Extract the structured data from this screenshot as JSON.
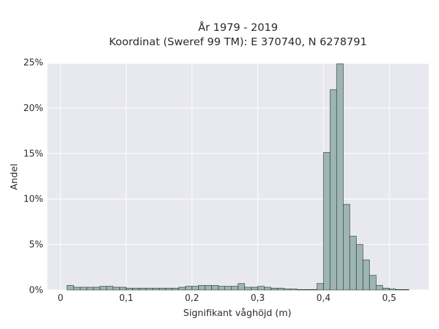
{
  "chart_data": {
    "type": "bar",
    "title_line1": "År 1979 - 2019",
    "title_line2": "Koordinat (Sweref 99 TM): E 370740, N 6278791",
    "xlabel": "Signifikant våghöjd (m)",
    "ylabel": "Andel",
    "xlim": [
      -0.02,
      0.56
    ],
    "ylim": [
      0,
      0.2485
    ],
    "x_ticks": [
      {
        "value": 0,
        "label": "0"
      },
      {
        "value": 0.1,
        "label": "0,1"
      },
      {
        "value": 0.2,
        "label": "0,2"
      },
      {
        "value": 0.3,
        "label": "0,3"
      },
      {
        "value": 0.4,
        "label": "0,4"
      },
      {
        "value": 0.5,
        "label": "0,5"
      }
    ],
    "y_ticks": [
      {
        "value": 0,
        "label": "0%"
      },
      {
        "value": 0.05,
        "label": "5%"
      },
      {
        "value": 0.1,
        "label": "10%"
      },
      {
        "value": 0.15,
        "label": "15%"
      },
      {
        "value": 0.2,
        "label": "20%"
      },
      {
        "value": 0.25,
        "label": "25%"
      }
    ],
    "grid": true,
    "bin_width": 0.01,
    "bin_starts": [
      0.01,
      0.02,
      0.03,
      0.04,
      0.05,
      0.06,
      0.07,
      0.08,
      0.09,
      0.1,
      0.11,
      0.12,
      0.13,
      0.14,
      0.15,
      0.16,
      0.17,
      0.18,
      0.19,
      0.2,
      0.21,
      0.22,
      0.23,
      0.24,
      0.25,
      0.26,
      0.27,
      0.28,
      0.29,
      0.3,
      0.31,
      0.32,
      0.33,
      0.34,
      0.35,
      0.36,
      0.37,
      0.38,
      0.39,
      0.4,
      0.41,
      0.42,
      0.43,
      0.44,
      0.45,
      0.46,
      0.47,
      0.48,
      0.49,
      0.5,
      0.51,
      0.52
    ],
    "values": [
      0.005,
      0.003,
      0.003,
      0.003,
      0.003,
      0.004,
      0.004,
      0.003,
      0.003,
      0.002,
      0.002,
      0.002,
      0.002,
      0.002,
      0.002,
      0.002,
      0.002,
      0.003,
      0.004,
      0.004,
      0.005,
      0.005,
      0.005,
      0.004,
      0.004,
      0.004,
      0.007,
      0.003,
      0.003,
      0.004,
      0.003,
      0.002,
      0.002,
      0.001,
      0.001,
      0.0005,
      0.0005,
      0.0005,
      0.007,
      0.151,
      0.22,
      0.26,
      0.094,
      0.059,
      0.05,
      0.033,
      0.016,
      0.005,
      0.002,
      0.001,
      0.0005,
      0.0005
    ]
  }
}
